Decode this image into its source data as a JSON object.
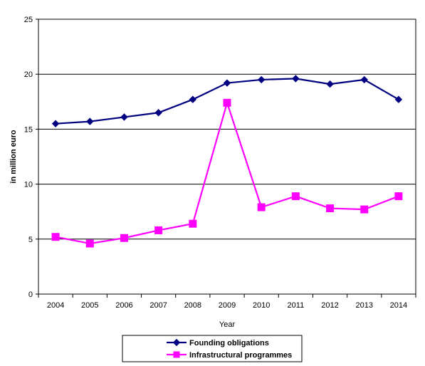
{
  "chart_data": {
    "type": "line",
    "title": "",
    "xlabel": "Year",
    "ylabel": "in million euro",
    "ylim": [
      0,
      25
    ],
    "yticks": [
      0,
      5,
      10,
      15,
      20,
      25
    ],
    "grid": "horizontal",
    "legend_position": "bottom",
    "categories": [
      "2004",
      "2005",
      "2006",
      "2007",
      "2008",
      "2009",
      "2010",
      "2011",
      "2012",
      "2013",
      "2014"
    ],
    "series": [
      {
        "name": "Founding obligations",
        "color": "#000080",
        "marker": "diamond",
        "values": [
          15.5,
          15.7,
          16.1,
          16.5,
          17.7,
          19.2,
          19.5,
          19.6,
          19.1,
          19.5,
          17.7
        ]
      },
      {
        "name": "Infrastructural programmes",
        "color": "#FF00FF",
        "marker": "square",
        "values": [
          5.2,
          4.6,
          5.1,
          5.8,
          6.4,
          17.4,
          7.9,
          8.9,
          7.8,
          7.7,
          8.9
        ]
      }
    ]
  }
}
